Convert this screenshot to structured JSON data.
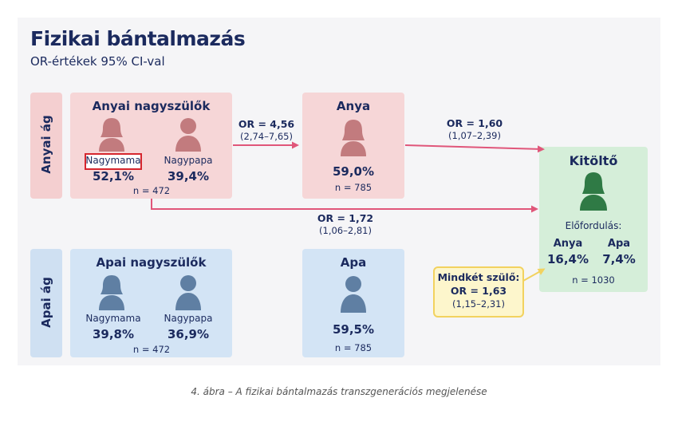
{
  "title": "Fizikai bántalmazás",
  "subtitle": "OR-értékek 95% CI-val",
  "maternal_branch": {
    "side_label": "Anyai ág",
    "grandparents": {
      "header": "Anyai nagyszülők",
      "grandma_label": "Nagymama",
      "grandma_value": "52,1%",
      "grandpa_label": "Nagypapa",
      "grandpa_value": "39,4%",
      "n": "n = 472"
    },
    "parent": {
      "header": "Anya",
      "value": "59,0%",
      "n": "n = 785"
    }
  },
  "paternal_branch": {
    "side_label": "Apai ág",
    "grandparents": {
      "header": "Apai nagyszülők",
      "grandma_label": "Nagymama",
      "grandma_value": "39,8%",
      "grandpa_label": "Nagypapa",
      "grandpa_value": "36,9%",
      "n": "n = 472"
    },
    "parent": {
      "header": "Apa",
      "value": "59,5%",
      "n": "n = 785"
    }
  },
  "respondent": {
    "header": "Kitöltő",
    "prevalence_label": "Előfordulás:",
    "mother_label": "Anya",
    "mother_value": "16,4%",
    "father_label": "Apa",
    "father_value": "7,4%",
    "n": "n = 1030"
  },
  "links": {
    "grandparents_to_mother": {
      "or": "OR = 4,56",
      "ci": "(2,74–7,65)"
    },
    "mother_to_respondent": {
      "or": "OR = 1,60",
      "ci": "(1,07–2,39)"
    },
    "grandparents_to_respondent": {
      "or": "OR = 1,72",
      "ci": "(1,06–2,81)"
    },
    "both_parents": {
      "label": "Mindkét szülő:",
      "or": "OR = 1,63",
      "ci": "(1,15–2,31)"
    }
  },
  "colors": {
    "navy": "#1b2a5e",
    "arrow_pink": "#e0567a",
    "arrow_yellow": "#f2d25f",
    "female_icon": "#c27b7e",
    "male_icon": "#5f7fa3",
    "respondent_icon": "#2f7a45",
    "highlight": "#d6262e"
  },
  "caption": "4. ábra – A fizikai bántalmazás transzgenerációs megjelenése"
}
